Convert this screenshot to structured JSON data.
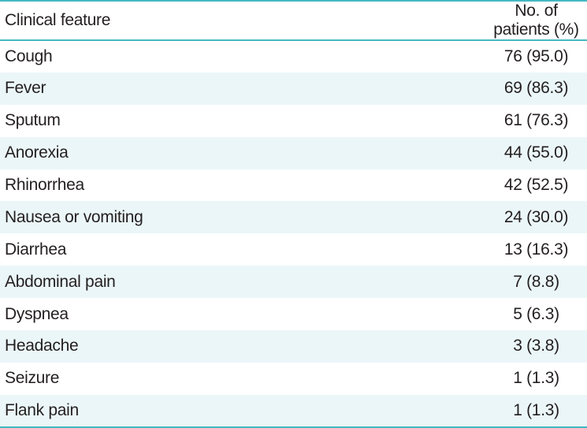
{
  "table": {
    "headers": {
      "feature": "Clinical feature",
      "count": "No. of patients (%)"
    },
    "rows": [
      {
        "feature": "Cough",
        "count": "76 (95.0)"
      },
      {
        "feature": "Fever",
        "count": "69 (86.3)"
      },
      {
        "feature": "Sputum",
        "count": "61 (76.3)"
      },
      {
        "feature": "Anorexia",
        "count": "44 (55.0)"
      },
      {
        "feature": "Rhinorrhea",
        "count": "42 (52.5)"
      },
      {
        "feature": "Nausea or vomiting",
        "count": "24 (30.0)"
      },
      {
        "feature": "Diarrhea",
        "count": "13 (16.3)"
      },
      {
        "feature": "Abdominal pain",
        "count": "7 (8.8)"
      },
      {
        "feature": "Dyspnea",
        "count": "5 (6.3)"
      },
      {
        "feature": "Headache",
        "count": "3 (3.8)"
      },
      {
        "feature": "Seizure",
        "count": "1 (1.3)"
      },
      {
        "feature": "Flank pain",
        "count": "1 (1.3)"
      }
    ]
  },
  "colors": {
    "rule": "#45b8c4",
    "stripe": "#ebf6f8",
    "text": "#231f20"
  }
}
